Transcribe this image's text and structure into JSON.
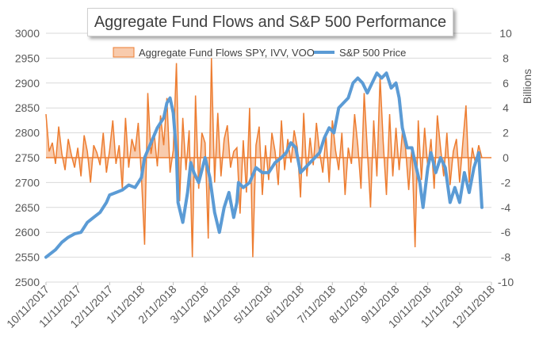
{
  "chart_data": {
    "type": "line",
    "title": "Aggregate Fund Flows and S&P 500 Performance",
    "y_left": {
      "range": [
        2500,
        3000
      ],
      "ticks": [
        2500,
        2550,
        2600,
        2650,
        2700,
        2750,
        2800,
        2850,
        2900,
        2950,
        3000
      ]
    },
    "y_right": {
      "label": "Billions",
      "range": [
        -10,
        10
      ],
      "ticks": [
        -10,
        -8,
        -6,
        -4,
        -2,
        0,
        2,
        4,
        6,
        8,
        10
      ]
    },
    "x_tick_labels": [
      "10/11/2017",
      "11/11/2017",
      "12/11/2017",
      "1/11/2018",
      "2/11/2018",
      "3/11/2018",
      "4/11/2018",
      "5/11/2018",
      "6/11/2018",
      "7/11/2018",
      "8/11/2018",
      "9/11/2018",
      "10/11/2018",
      "11/11/2018",
      "12/11/2018"
    ],
    "x_range_months": [
      0,
      14
    ],
    "grid": true,
    "legend_position": "top",
    "series": [
      {
        "name": "Aggregate Fund Flows SPY, IVV, VOO",
        "kind": "area",
        "axis": "right",
        "color": "#ed7d31",
        "fill": "#f8cbad",
        "x": [
          0,
          0.1,
          0.2,
          0.3,
          0.4,
          0.5,
          0.6,
          0.7,
          0.8,
          0.9,
          1.0,
          1.1,
          1.2,
          1.3,
          1.4,
          1.5,
          1.6,
          1.7,
          1.8,
          1.9,
          2.0,
          2.1,
          2.2,
          2.3,
          2.4,
          2.5,
          2.6,
          2.7,
          2.8,
          2.9,
          3.0,
          3.1,
          3.2,
          3.3,
          3.4,
          3.5,
          3.6,
          3.7,
          3.8,
          3.9,
          4.0,
          4.1,
          4.2,
          4.3,
          4.4,
          4.5,
          4.6,
          4.7,
          4.8,
          4.9,
          5.0,
          5.1,
          5.2,
          5.3,
          5.4,
          5.5,
          5.6,
          5.7,
          5.8,
          5.9,
          6.0,
          6.1,
          6.2,
          6.3,
          6.4,
          6.5,
          6.6,
          6.7,
          6.8,
          6.9,
          7.0,
          7.1,
          7.2,
          7.3,
          7.4,
          7.5,
          7.6,
          7.7,
          7.8,
          7.9,
          8.0,
          8.1,
          8.2,
          8.3,
          8.4,
          8.5,
          8.6,
          8.7,
          8.8,
          8.9,
          9.0,
          9.1,
          9.2,
          9.3,
          9.4,
          9.5,
          9.6,
          9.7,
          9.8,
          9.9,
          10.0,
          10.1,
          10.2,
          10.3,
          10.4,
          10.5,
          10.6,
          10.7,
          10.8,
          10.9,
          11.0,
          11.1,
          11.2,
          11.3,
          11.4,
          11.5,
          11.6,
          11.7,
          11.8,
          11.9,
          12.0,
          12.1,
          12.2,
          12.3,
          12.4,
          12.5,
          12.6,
          12.7,
          12.8,
          12.9,
          13.0,
          13.1,
          13.2,
          13.3,
          13.4,
          13.5,
          13.6,
          13.7
        ],
        "values": [
          3.5,
          0.5,
          1.2,
          -0.5,
          2.5,
          0.3,
          -1.0,
          1.5,
          0.2,
          -0.8,
          0.8,
          -1.5,
          1.8,
          0.5,
          -2.0,
          1.0,
          0.4,
          -0.6,
          2.0,
          -1.2,
          0.6,
          3.0,
          -0.5,
          1.0,
          -2.5,
          3.2,
          -0.8,
          1.5,
          0.5,
          2.8,
          -1.5,
          -7.0,
          5.2,
          0.3,
          2.0,
          -0.7,
          3.4,
          1.0,
          4.8,
          -1.2,
          0.6,
          7.6,
          -3.5,
          3.2,
          -1.0,
          2.2,
          -8.0,
          5.0,
          -2.5,
          2.0,
          1.2,
          -6.5,
          8.0,
          -2.0,
          3.6,
          -1.5,
          1.5,
          2.6,
          -0.8,
          0.5,
          0.8,
          -4.5,
          1.4,
          -2.8,
          4.0,
          -8.0,
          1.0,
          2.5,
          -3.0,
          1.0,
          -1.8,
          2.0,
          0.5,
          -2.2,
          3.0,
          -1.0,
          1.5,
          -0.4,
          2.2,
          0.8,
          -3.2,
          3.6,
          -1.5,
          1.6,
          -0.6,
          2.8,
          0.4,
          -1.2,
          1.8,
          -2.0,
          3.0,
          0.6,
          -1.0,
          2.0,
          -3.0,
          0.8,
          -0.5,
          3.5,
          1.0,
          -2.5,
          5.2,
          0.6,
          -4.0,
          3.0,
          -1.5,
          6.5,
          1.2,
          -3.0,
          3.5,
          -1.5,
          2.4,
          -1.0,
          2.0,
          0.8,
          -2.6,
          0.9,
          -7.2,
          3.0,
          -1.8,
          2.4,
          -0.8,
          1.5,
          -2.5,
          3.4,
          0.8,
          -1.5,
          2.0,
          -2.2,
          0.5,
          1.5,
          -2.0,
          1.2,
          4.2,
          -2.0,
          0.8,
          -0.5,
          1.0,
          0.0
        ],
        "axis_right_min_visible": -8,
        "axis_right_max_visible": 8
      },
      {
        "name": "S&P 500 Price",
        "kind": "line",
        "axis": "left",
        "color": "#5b9bd5",
        "x": [
          0,
          0.3,
          0.5,
          0.7,
          0.9,
          1.1,
          1.3,
          1.5,
          1.7,
          1.9,
          2.0,
          2.2,
          2.4,
          2.6,
          2.8,
          3.0,
          3.1,
          3.3,
          3.5,
          3.7,
          3.8,
          3.9,
          4.0,
          4.1,
          4.15,
          4.3,
          4.45,
          4.55,
          4.65,
          4.8,
          5.0,
          5.15,
          5.3,
          5.45,
          5.6,
          5.75,
          5.9,
          6.0,
          6.05,
          6.2,
          6.4,
          6.6,
          6.8,
          7.0,
          7.2,
          7.4,
          7.55,
          7.7,
          7.85,
          8.0,
          8.15,
          8.3,
          8.45,
          8.6,
          8.75,
          8.9,
          9.05,
          9.2,
          9.35,
          9.5,
          9.65,
          9.8,
          9.95,
          10.1,
          10.25,
          10.4,
          10.55,
          10.7,
          10.85,
          11.0,
          11.1,
          11.2,
          11.35,
          11.5,
          11.6,
          11.75,
          11.85,
          12.0,
          12.1,
          12.25,
          12.4,
          12.55,
          12.7,
          12.85,
          13.0,
          13.15,
          13.3,
          13.45,
          13.6,
          13.7
        ],
        "values": [
          2550,
          2565,
          2580,
          2590,
          2597,
          2600,
          2620,
          2630,
          2640,
          2660,
          2675,
          2680,
          2685,
          2695,
          2690,
          2710,
          2750,
          2780,
          2810,
          2830,
          2860,
          2870,
          2840,
          2760,
          2660,
          2620,
          2680,
          2740,
          2720,
          2700,
          2750,
          2710,
          2640,
          2600,
          2650,
          2680,
          2630,
          2660,
          2700,
          2690,
          2700,
          2730,
          2720,
          2720,
          2740,
          2750,
          2760,
          2780,
          2770,
          2720,
          2730,
          2740,
          2750,
          2760,
          2790,
          2810,
          2800,
          2850,
          2860,
          2870,
          2900,
          2910,
          2900,
          2880,
          2900,
          2920,
          2910,
          2920,
          2890,
          2900,
          2870,
          2810,
          2770,
          2770,
          2740,
          2700,
          2650,
          2730,
          2760,
          2720,
          2750,
          2730,
          2660,
          2690,
          2660,
          2720,
          2680,
          2730,
          2760,
          2650
        ]
      }
    ]
  }
}
